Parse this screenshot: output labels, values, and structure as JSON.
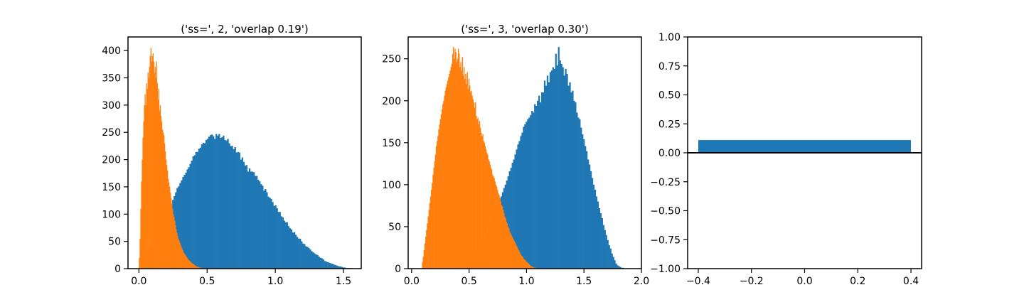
{
  "colors": {
    "blue": "#1f77b4",
    "orange": "#ff7f0e",
    "axis": "#000000"
  },
  "chart_data": [
    {
      "type": "histogram",
      "title": "('ss=', 2, 'overlap 0.19')",
      "xlim": [
        -0.08,
        1.63
      ],
      "ylim": [
        0,
        425
      ],
      "xticks": [
        0.0,
        0.5,
        1.0,
        1.5
      ],
      "xtick_labels": [
        "0.0",
        "0.5",
        "1.0",
        "1.5"
      ],
      "yticks": [
        0,
        50,
        100,
        150,
        200,
        250,
        300,
        350,
        400
      ],
      "ytick_labels": [
        "0",
        "50",
        "100",
        "150",
        "200",
        "250",
        "300",
        "350",
        "400"
      ],
      "series": [
        {
          "color": "blue",
          "bin_start": 0.0,
          "bin_width": 0.0106,
          "values": [
            3,
            6,
            10,
            15,
            20,
            26,
            32,
            38,
            44,
            50,
            56,
            62,
            68,
            73,
            78,
            83,
            88,
            93,
            98,
            103,
            108,
            113,
            119,
            126,
            133,
            140,
            148,
            151,
            157,
            162,
            168,
            172,
            176,
            182,
            186,
            192,
            198,
            206,
            208,
            214,
            214,
            220,
            222,
            228,
            231,
            230,
            236,
            238,
            242,
            245,
            246,
            243,
            238,
            247,
            244,
            247,
            240,
            241,
            244,
            236,
            235,
            238,
            230,
            225,
            225,
            219,
            223,
            213,
            214,
            213,
            200,
            204,
            196,
            189,
            190,
            178,
            184,
            178,
            178,
            177,
            170,
            170,
            163,
            160,
            155,
            152,
            143,
            146,
            140,
            132,
            130,
            128,
            122,
            115,
            116,
            111,
            104,
            104,
            96,
            94,
            88,
            85,
            85,
            78,
            74,
            72,
            66,
            67,
            62,
            58,
            55,
            55,
            50,
            46,
            45,
            41,
            40,
            38,
            35,
            32,
            30,
            28,
            26,
            25,
            22,
            20,
            19,
            17,
            14,
            13,
            12,
            11,
            10,
            9,
            8,
            7,
            6,
            5,
            4,
            4,
            3,
            2,
            2,
            1,
            1,
            1,
            1,
            0,
            0,
            0
          ]
        },
        {
          "color": "orange",
          "bin_start": 0.0,
          "bin_width": 0.0053,
          "values": [
            20,
            55,
            110,
            160,
            200,
            240,
            270,
            300,
            320,
            300,
            340,
            330,
            360,
            350,
            370,
            390,
            405,
            380,
            390,
            395,
            380,
            360,
            370,
            350,
            380,
            340,
            310,
            330,
            290,
            300,
            280,
            270,
            255,
            250,
            245,
            230,
            215,
            200,
            190,
            180,
            165,
            158,
            150,
            140,
            130,
            120,
            110,
            100,
            95,
            88,
            80,
            72,
            66,
            60,
            55,
            52,
            48,
            44,
            40,
            37,
            34,
            30,
            28,
            26,
            24,
            22,
            20,
            18,
            16,
            15,
            14,
            12,
            11,
            10,
            9,
            8,
            7,
            6,
            5,
            4,
            4,
            3,
            3,
            2,
            2,
            2,
            1,
            1,
            1,
            1,
            1,
            1,
            1,
            0,
            1,
            0,
            1,
            0,
            0,
            0
          ]
        }
      ]
    },
    {
      "type": "histogram",
      "title": "('ss=', 3, 'overlap 0.30')",
      "xlim": [
        -0.03,
        2.0
      ],
      "ylim": [
        0,
        276
      ],
      "xticks": [
        0.0,
        0.5,
        1.0,
        1.5,
        2.0
      ],
      "xtick_labels": [
        "0.0",
        "0.5",
        "1.0",
        "1.5",
        "2.0"
      ],
      "yticks": [
        0,
        50,
        100,
        150,
        200,
        250
      ],
      "ytick_labels": [
        "0",
        "50",
        "100",
        "150",
        "200",
        "250"
      ],
      "series": [
        {
          "color": "blue",
          "bin_start": 0.09,
          "bin_width": 0.0122,
          "values": [
            0,
            0,
            0,
            0,
            0,
            0,
            0,
            0,
            0,
            0,
            0,
            0,
            0,
            0,
            0,
            0,
            0,
            0,
            0,
            0,
            0,
            0,
            0,
            1,
            1,
            2,
            2,
            3,
            4,
            5,
            6,
            7,
            9,
            10,
            12,
            14,
            16,
            18,
            20,
            22,
            25,
            28,
            31,
            34,
            37,
            40,
            44,
            48,
            52,
            56,
            60,
            64,
            68,
            72,
            77,
            82,
            86,
            91,
            96,
            100,
            105,
            110,
            116,
            120,
            126,
            130,
            136,
            142,
            148,
            152,
            158,
            162,
            169,
            172,
            175,
            178,
            180,
            183,
            188,
            186,
            196,
            194,
            200,
            206,
            198,
            210,
            210,
            224,
            218,
            230,
            222,
            234,
            236,
            240,
            238,
            256,
            242,
            264,
            248,
            244,
            240,
            230,
            238,
            232,
            218,
            222,
            210,
            212,
            200,
            198,
            186,
            180,
            178,
            168,
            160,
            154,
            146,
            140,
            130,
            124,
            116,
            108,
            100,
            94,
            86,
            80,
            72,
            66,
            60,
            52,
            46,
            40,
            34,
            28,
            24,
            18,
            14,
            10,
            6,
            4,
            3,
            2,
            1,
            1,
            0
          ]
        },
        {
          "color": "orange",
          "bin_start": 0.09,
          "bin_width": 0.0071,
          "values": [
            8,
            14,
            22,
            30,
            38,
            46,
            54,
            62,
            70,
            78,
            86,
            94,
            102,
            112,
            120,
            128,
            136,
            146,
            152,
            158,
            166,
            172,
            178,
            184,
            190,
            196,
            200,
            206,
            212,
            216,
            220,
            224,
            228,
            232,
            236,
            240,
            244,
            256,
            264,
            250,
            262,
            258,
            246,
            250,
            262,
            256,
            240,
            246,
            236,
            252,
            230,
            240,
            226,
            232,
            220,
            234,
            214,
            226,
            218,
            210,
            212,
            206,
            202,
            198,
            192,
            198,
            182,
            178,
            180,
            172,
            176,
            168,
            162,
            158,
            160,
            152,
            150,
            146,
            142,
            138,
            136,
            130,
            128,
            124,
            120,
            118,
            112,
            110,
            108,
            104,
            100,
            98,
            94,
            90,
            88,
            84,
            80,
            76,
            74,
            70,
            66,
            62,
            60,
            56,
            54,
            50,
            48,
            44,
            42,
            40,
            38,
            36,
            34,
            32,
            30,
            28,
            26,
            24,
            22,
            20,
            18,
            16,
            15,
            14,
            12,
            11,
            10,
            9,
            8,
            7,
            6,
            5,
            4,
            3,
            3,
            2,
            2,
            1,
            1,
            1
          ]
        }
      ]
    },
    {
      "type": "bar",
      "title": "",
      "xlim": [
        -0.44,
        0.44
      ],
      "ylim": [
        -1.0,
        1.0
      ],
      "xticks": [
        -0.4,
        -0.2,
        0.0,
        0.2,
        0.4
      ],
      "xtick_labels": [
        "−0.4",
        "−0.2",
        "0.0",
        "0.2",
        "0.4"
      ],
      "yticks": [
        -1.0,
        -0.75,
        -0.5,
        -0.25,
        0.0,
        0.25,
        0.5,
        0.75,
        1.0
      ],
      "ytick_labels": [
        "−1.00",
        "−0.75",
        "−0.50",
        "−0.25",
        "0.00",
        "0.25",
        "0.50",
        "0.75",
        "1.00"
      ],
      "bars": [
        {
          "x": 0.0,
          "width": 0.8,
          "value": 0.11,
          "color": "blue"
        }
      ],
      "hline": 0.0
    }
  ]
}
